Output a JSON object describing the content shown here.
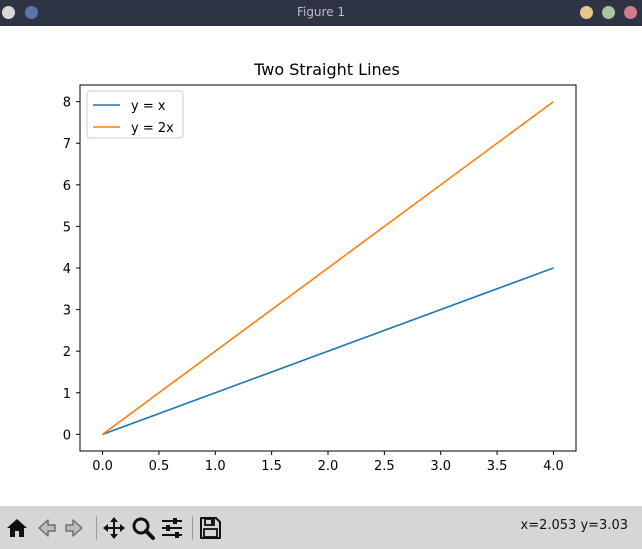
{
  "window": {
    "title": "Figure 1"
  },
  "chart_data": {
    "type": "line",
    "title": "Two Straight Lines",
    "xlabel": "",
    "ylabel": "",
    "xlim": [
      -0.2,
      4.2
    ],
    "ylim": [
      -0.4,
      8.4
    ],
    "xticks": [
      0.0,
      0.5,
      1.0,
      1.5,
      2.0,
      2.5,
      3.0,
      3.5,
      4.0
    ],
    "xtick_labels": [
      "0.0",
      "0.5",
      "1.0",
      "1.5",
      "2.0",
      "2.5",
      "3.0",
      "3.5",
      "4.0"
    ],
    "yticks": [
      0,
      1,
      2,
      3,
      4,
      5,
      6,
      7,
      8
    ],
    "ytick_labels": [
      "0",
      "1",
      "2",
      "3",
      "4",
      "5",
      "6",
      "7",
      "8"
    ],
    "grid": false,
    "legend_position": "top-left",
    "series": [
      {
        "name": "y = x",
        "color": "#1f77b4",
        "x": [
          0,
          4
        ],
        "y": [
          0,
          4
        ]
      },
      {
        "name": "y = 2x",
        "color": "#ff7f0e",
        "x": [
          0,
          4
        ],
        "y": [
          0,
          8
        ]
      }
    ]
  },
  "toolbar": {
    "icons": [
      "home-icon",
      "back-icon",
      "forward-icon",
      "pan-icon",
      "zoom-icon",
      "configure-subplots-icon",
      "save-icon"
    ],
    "coordinates": "x=2.053 y=3.03"
  }
}
